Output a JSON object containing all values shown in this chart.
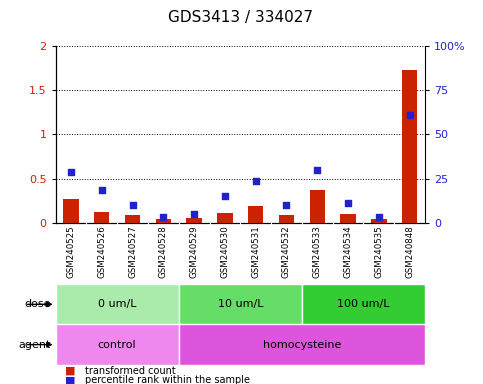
{
  "title": "GDS3413 / 334027",
  "samples": [
    "GSM240525",
    "GSM240526",
    "GSM240527",
    "GSM240528",
    "GSM240529",
    "GSM240530",
    "GSM240531",
    "GSM240532",
    "GSM240533",
    "GSM240534",
    "GSM240535",
    "GSM240848"
  ],
  "red_bars": [
    0.27,
    0.12,
    0.09,
    0.04,
    0.05,
    0.11,
    0.19,
    0.09,
    0.37,
    0.1,
    0.04,
    1.73
  ],
  "blue_dots_pct": [
    28.5,
    18.5,
    10.0,
    3.5,
    5.0,
    15.0,
    23.5,
    10.0,
    30.0,
    11.0,
    3.5,
    61.0
  ],
  "ylim_left": [
    0,
    2
  ],
  "ylim_right": [
    0,
    100
  ],
  "yticks_left": [
    0,
    0.5,
    1.0,
    1.5,
    2.0
  ],
  "ytick_labels_left": [
    "0",
    "0.5",
    "1",
    "1.5",
    "2"
  ],
  "yticks_right": [
    0,
    25,
    50,
    75,
    100
  ],
  "ytick_labels_right": [
    "0",
    "25",
    "50",
    "75",
    "100%"
  ],
  "dose_groups": [
    {
      "label": "0 um/L",
      "start": 0,
      "end": 3,
      "color": "#AAEAAA"
    },
    {
      "label": "10 um/L",
      "start": 4,
      "end": 7,
      "color": "#66DD66"
    },
    {
      "label": "100 um/L",
      "start": 8,
      "end": 11,
      "color": "#33CC33"
    }
  ],
  "agent_groups": [
    {
      "label": "control",
      "start": 0,
      "end": 3,
      "color": "#EE88EE"
    },
    {
      "label": "homocysteine",
      "start": 4,
      "end": 11,
      "color": "#DD55DD"
    }
  ],
  "legend_red": "transformed count",
  "legend_blue": "percentile rank within the sample",
  "bar_color": "#CC2200",
  "dot_color": "#2222CC",
  "sample_bg_color": "#CCCCCC",
  "title_fontsize": 11,
  "tick_fontsize": 8,
  "label_fontsize": 8
}
